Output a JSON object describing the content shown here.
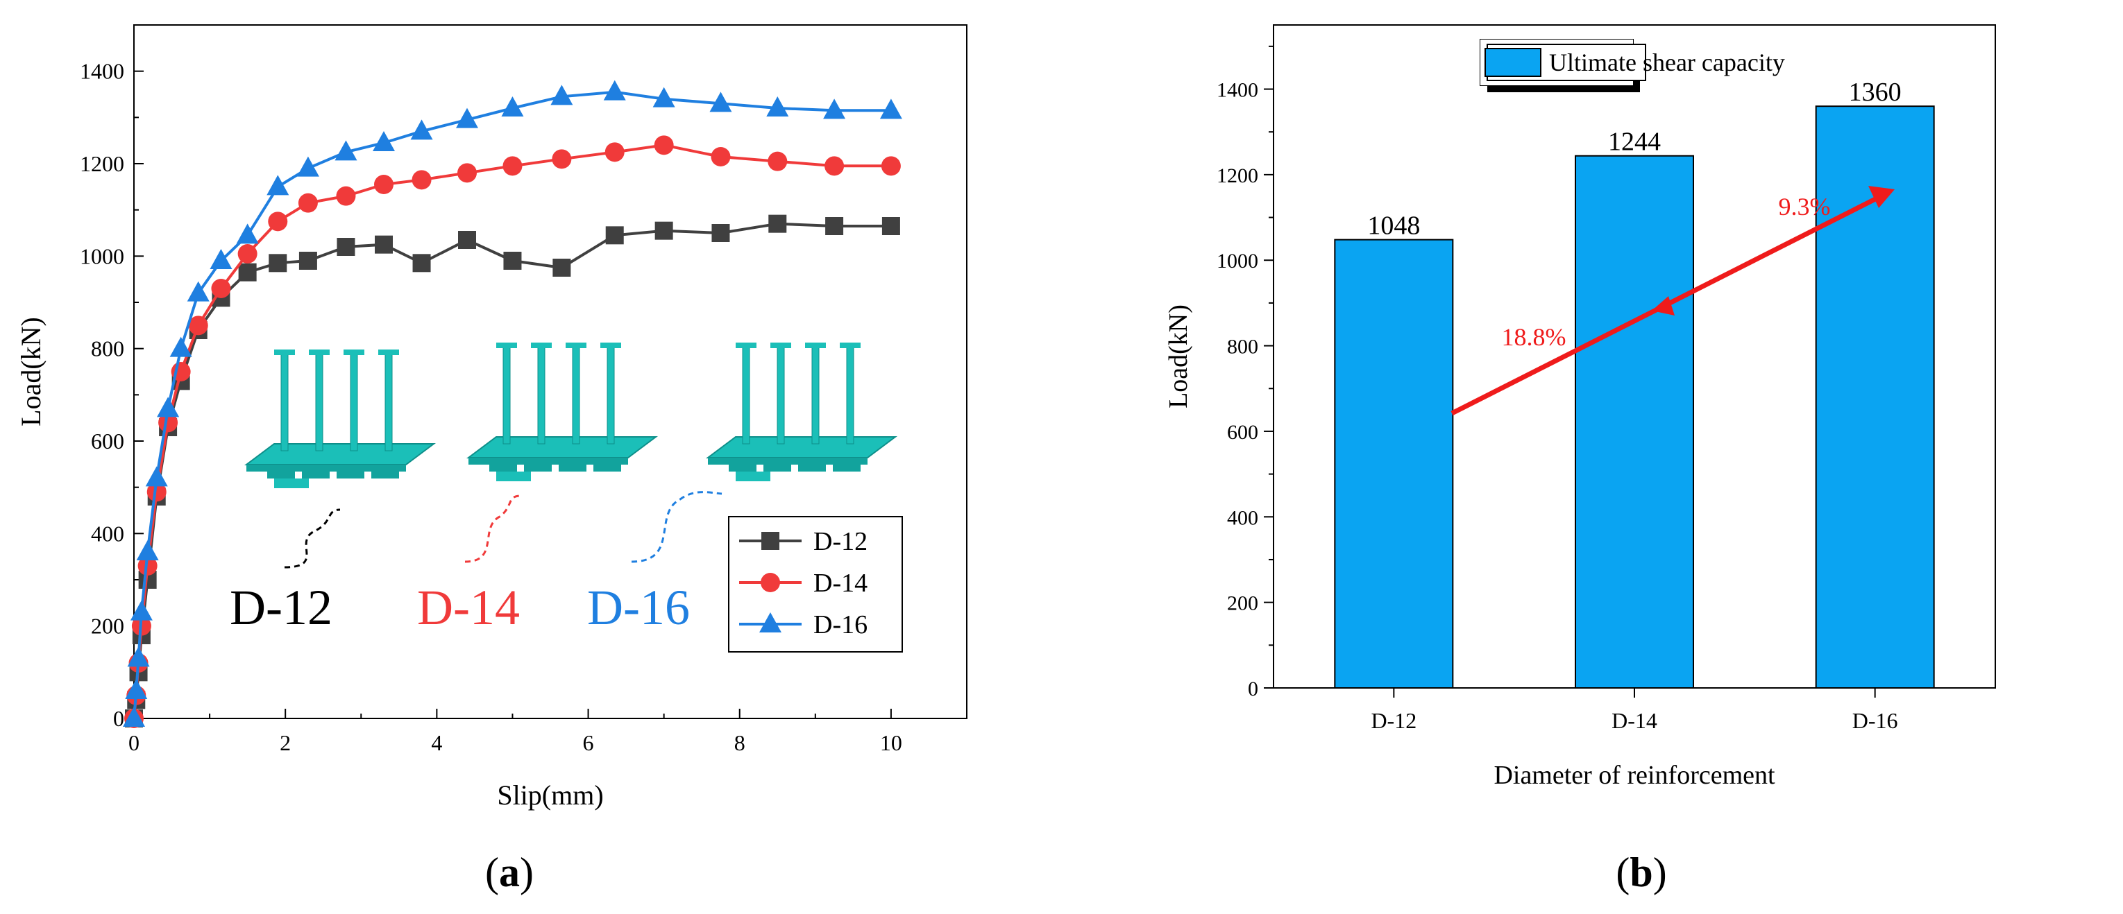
{
  "figure": {
    "panel_a_label_open": "(",
    "panel_a_label_letter": "a",
    "panel_a_label_close": ")",
    "panel_b_label_open": "(",
    "panel_b_label_letter": "b",
    "panel_b_label_close": ")"
  },
  "colors": {
    "d12": "#404040",
    "d14": "#f03a3a",
    "d16": "#1f7fe0",
    "bar": "#0aa4f2",
    "arrow": "#ef1b1b",
    "model": "#1bbfb8"
  },
  "chart_data": [
    {
      "type": "line",
      "xlabel": "Slip(mm)",
      "ylabel": "Load(kN)",
      "xlim": [
        0,
        11
      ],
      "ylim": [
        0,
        1500
      ],
      "xticks": [
        0,
        2,
        4,
        6,
        8,
        10
      ],
      "yticks": [
        0,
        200,
        400,
        600,
        800,
        1000,
        1200,
        1400
      ],
      "legend": {
        "placement": "bottom-right"
      },
      "series": [
        {
          "name": "D-12",
          "marker": "square",
          "color": "#404040",
          "x": [
            0,
            0.03,
            0.06,
            0.1,
            0.18,
            0.3,
            0.45,
            0.62,
            0.85,
            1.15,
            1.5,
            1.9,
            2.3,
            2.8,
            3.3,
            3.8,
            4.4,
            5.0,
            5.65,
            6.35,
            7.0,
            7.75,
            8.5,
            9.25,
            10.0
          ],
          "y": [
            0,
            40,
            100,
            180,
            300,
            480,
            630,
            730,
            840,
            910,
            965,
            985,
            990,
            1020,
            1025,
            985,
            1035,
            990,
            975,
            1045,
            1055,
            1050,
            1070,
            1065,
            1065
          ]
        },
        {
          "name": "D-14",
          "marker": "circle",
          "color": "#f03a3a",
          "x": [
            0,
            0.03,
            0.06,
            0.1,
            0.18,
            0.3,
            0.45,
            0.62,
            0.85,
            1.15,
            1.5,
            1.9,
            2.3,
            2.8,
            3.3,
            3.8,
            4.4,
            5.0,
            5.65,
            6.35,
            7.0,
            7.75,
            8.5,
            9.25,
            10.0
          ],
          "y": [
            0,
            50,
            120,
            200,
            330,
            490,
            640,
            750,
            850,
            930,
            1005,
            1075,
            1115,
            1130,
            1155,
            1165,
            1180,
            1195,
            1210,
            1225,
            1240,
            1215,
            1205,
            1195,
            1195
          ]
        },
        {
          "name": "D-16",
          "marker": "triangle",
          "color": "#1f7fe0",
          "x": [
            0,
            0.03,
            0.06,
            0.1,
            0.18,
            0.3,
            0.45,
            0.62,
            0.85,
            1.15,
            1.5,
            1.9,
            2.3,
            2.8,
            3.3,
            3.8,
            4.4,
            5.0,
            5.65,
            6.35,
            7.0,
            7.75,
            8.5,
            9.25,
            10.0
          ],
          "y": [
            0,
            60,
            130,
            230,
            360,
            520,
            670,
            800,
            920,
            990,
            1045,
            1150,
            1190,
            1225,
            1245,
            1270,
            1295,
            1320,
            1345,
            1355,
            1340,
            1330,
            1320,
            1315,
            1315
          ]
        }
      ],
      "annotations": [
        {
          "text": "D-12",
          "color": "#000000"
        },
        {
          "text": "D-14",
          "color": "#f03a3a"
        },
        {
          "text": "D-16",
          "color": "#1f7fe0"
        }
      ]
    },
    {
      "type": "bar",
      "xlabel": "Diameter of reinforcement",
      "ylabel": "Load(kN)",
      "ylim": [
        0,
        1550
      ],
      "yticks": [
        0,
        200,
        400,
        600,
        800,
        1000,
        1200,
        1400
      ],
      "categories": [
        "D-12",
        "D-14",
        "D-16"
      ],
      "series": [
        {
          "name": "Ultimate shear capacity",
          "values": [
            1048,
            1244,
            1360
          ],
          "color": "#0aa4f2"
        }
      ],
      "data_labels": [
        "1048",
        "1244",
        "1360"
      ],
      "legend": {
        "placement": "top-center"
      },
      "annotations": [
        {
          "text": "18.8%",
          "color": "#ef1b1b"
        },
        {
          "text": "9.3%",
          "color": "#ef1b1b"
        }
      ]
    }
  ]
}
